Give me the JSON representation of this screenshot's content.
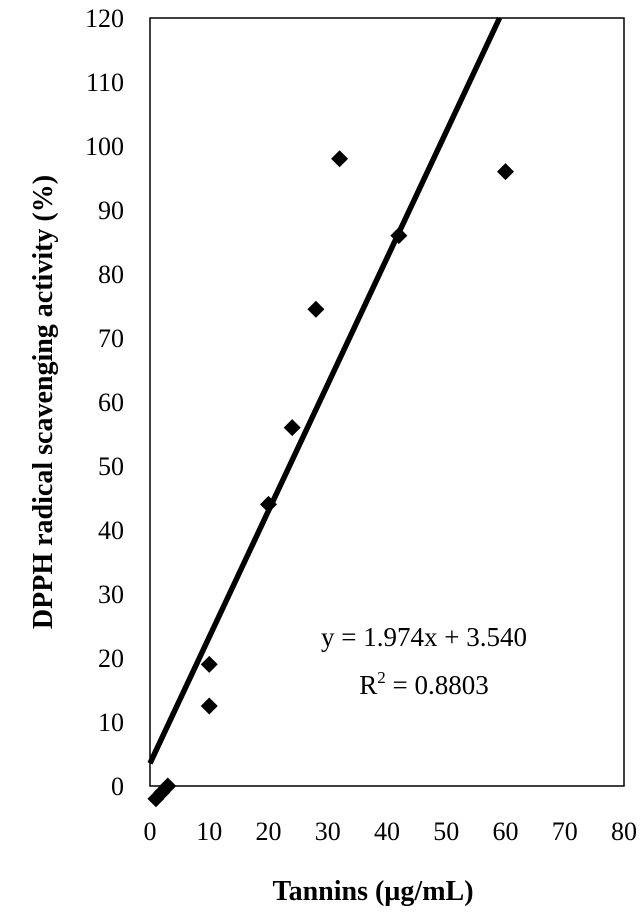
{
  "chart_data": {
    "type": "scatter",
    "xlabel": "Tannins (µg/mL)",
    "ylabel": "DPPH radical scavenging activity (%)",
    "xlim": [
      0,
      80
    ],
    "ylim": [
      0,
      120
    ],
    "x_ticks": [
      0,
      10,
      20,
      30,
      40,
      50,
      60,
      70,
      80
    ],
    "y_ticks": [
      0,
      10,
      20,
      30,
      40,
      50,
      60,
      70,
      80,
      90,
      100,
      110,
      120
    ],
    "grid": false,
    "series": [
      {
        "marker": "diamond",
        "color": "#000000",
        "x": [
          1,
          2,
          3,
          10,
          10,
          20,
          24,
          28,
          32,
          42,
          60
        ],
        "y": [
          -2,
          -1,
          0,
          12.5,
          19,
          44,
          56,
          74.5,
          98,
          86,
          96
        ]
      }
    ],
    "trendline": {
      "slope": 1.974,
      "intercept": 3.54,
      "equation": "y = 1.974x + 3.540",
      "r2_prefix": "R",
      "r2_sup": "2",
      "r2_suffix": " = 0.8803"
    }
  }
}
